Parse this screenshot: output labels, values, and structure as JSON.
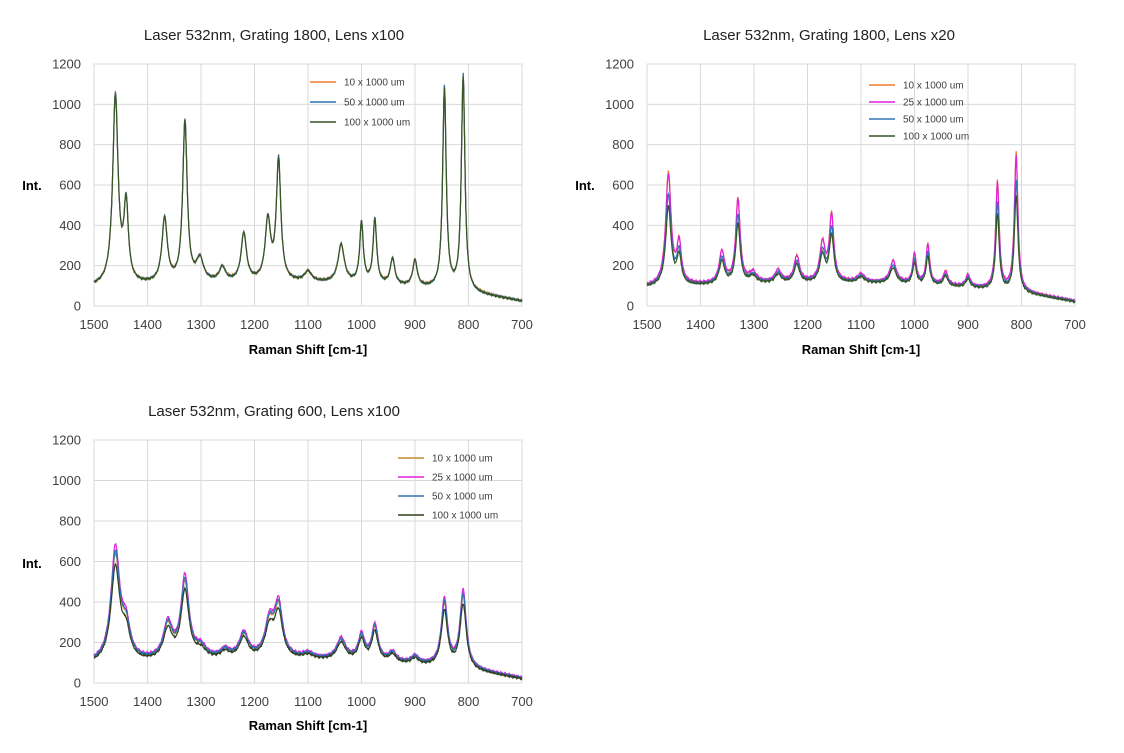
{
  "chart_data": [
    {
      "type": "line",
      "title": "Laser 532nm, Grating 1800, Lens x100",
      "xlabel": "Raman Shift [cm-1]",
      "ylabel": "Int.",
      "xlim": [
        1500,
        700
      ],
      "ylim": [
        0,
        1200
      ],
      "x_ticks": [
        1500,
        1400,
        1300,
        1200,
        1100,
        1000,
        900,
        800,
        700
      ],
      "y_ticks": [
        0,
        200,
        400,
        600,
        800,
        1000,
        1200
      ],
      "grid": true,
      "legend_position": "top-right",
      "series": [
        {
          "name": "10 x 1000 um",
          "color": "#ed7d31",
          "scale": 1.0,
          "offset": 2
        },
        {
          "name": "50 x 1000 um",
          "color": "#2e75b6",
          "scale": 1.0,
          "offset": 0
        },
        {
          "name": "100 x 1000 um",
          "color": "#375623",
          "scale": 0.99,
          "offset": -1
        }
      ],
      "peaks": [
        {
          "x": 1460,
          "height": 940,
          "width": 6
        },
        {
          "x": 1440,
          "height": 380,
          "width": 5
        },
        {
          "x": 1368,
          "height": 320,
          "width": 6
        },
        {
          "x": 1330,
          "height": 800,
          "width": 5
        },
        {
          "x": 1302,
          "height": 110,
          "width": 8
        },
        {
          "x": 1260,
          "height": 70,
          "width": 7
        },
        {
          "x": 1220,
          "height": 240,
          "width": 6
        },
        {
          "x": 1175,
          "height": 300,
          "width": 6
        },
        {
          "x": 1155,
          "height": 600,
          "width": 5
        },
        {
          "x": 1100,
          "height": 50,
          "width": 8
        },
        {
          "x": 1038,
          "height": 190,
          "width": 7
        },
        {
          "x": 1000,
          "height": 300,
          "width": 4
        },
        {
          "x": 975,
          "height": 320,
          "width": 4
        },
        {
          "x": 942,
          "height": 130,
          "width": 5
        },
        {
          "x": 900,
          "height": 130,
          "width": 5
        },
        {
          "x": 845,
          "height": 1000,
          "width": 4
        },
        {
          "x": 810,
          "height": 1070,
          "width": 4
        }
      ]
    },
    {
      "type": "line",
      "title": "Laser 532nm, Grating 1800, Lens x20",
      "xlabel": "Raman Shift [cm-1]",
      "ylabel": "Int.",
      "xlim": [
        1500,
        700
      ],
      "ylim": [
        0,
        1200
      ],
      "x_ticks": [
        1500,
        1400,
        1300,
        1200,
        1100,
        1000,
        900,
        800,
        700
      ],
      "y_ticks": [
        0,
        200,
        400,
        600,
        800,
        1000,
        1200
      ],
      "grid": true,
      "legend_position": "top-right",
      "series": [
        {
          "name": "10 x 1000 um",
          "color": "#ed7d31",
          "scale": 1.0,
          "offset": 0
        },
        {
          "name": "25 x 1000 um",
          "color": "#e020e0",
          "scale": 0.97,
          "offset": 3
        },
        {
          "name": "50 x 1000 um",
          "color": "#2e75b6",
          "scale": 0.8,
          "offset": 0
        },
        {
          "name": "100 x 1000 um",
          "color": "#375623",
          "scale": 0.7,
          "offset": -2
        }
      ],
      "peaks": [
        {
          "x": 1460,
          "height": 560,
          "width": 6
        },
        {
          "x": 1440,
          "height": 200,
          "width": 5
        },
        {
          "x": 1360,
          "height": 160,
          "width": 6
        },
        {
          "x": 1330,
          "height": 420,
          "width": 5
        },
        {
          "x": 1302,
          "height": 50,
          "width": 8
        },
        {
          "x": 1255,
          "height": 60,
          "width": 7
        },
        {
          "x": 1220,
          "height": 130,
          "width": 6
        },
        {
          "x": 1172,
          "height": 190,
          "width": 6
        },
        {
          "x": 1155,
          "height": 330,
          "width": 5
        },
        {
          "x": 1100,
          "height": 40,
          "width": 8
        },
        {
          "x": 1040,
          "height": 110,
          "width": 7
        },
        {
          "x": 1000,
          "height": 150,
          "width": 4
        },
        {
          "x": 975,
          "height": 200,
          "width": 4
        },
        {
          "x": 942,
          "height": 70,
          "width": 5
        },
        {
          "x": 900,
          "height": 60,
          "width": 5
        },
        {
          "x": 845,
          "height": 540,
          "width": 4
        },
        {
          "x": 810,
          "height": 690,
          "width": 4
        }
      ]
    },
    {
      "type": "line",
      "title": "Laser 532nm, Grating 600, Lens x100",
      "xlabel": "Raman Shift [cm-1]",
      "ylabel": "Int.",
      "xlim": [
        1500,
        700
      ],
      "ylim": [
        0,
        1200
      ],
      "x_ticks": [
        1500,
        1400,
        1300,
        1200,
        1100,
        1000,
        900,
        800,
        700
      ],
      "y_ticks": [
        0,
        200,
        400,
        600,
        800,
        1000,
        1200
      ],
      "grid": true,
      "legend_position": "top-right",
      "series": [
        {
          "name": "10 x 1000 um",
          "color": "#c08a30",
          "scale": 0.95,
          "offset": 0
        },
        {
          "name": "25 x 1000 um",
          "color": "#e020e0",
          "scale": 1.03,
          "offset": 3
        },
        {
          "name": "50 x 1000 um",
          "color": "#2e75b6",
          "scale": 0.98,
          "offset": 0
        },
        {
          "name": "100 x 1000 um",
          "color": "#2f3f1f",
          "scale": 0.86,
          "offset": -4
        }
      ],
      "peaks": [
        {
          "x": 1460,
          "height": 540,
          "width": 10
        },
        {
          "x": 1440,
          "height": 150,
          "width": 9
        },
        {
          "x": 1362,
          "height": 170,
          "width": 10
        },
        {
          "x": 1330,
          "height": 390,
          "width": 9
        },
        {
          "x": 1300,
          "height": 50,
          "width": 12
        },
        {
          "x": 1255,
          "height": 40,
          "width": 10
        },
        {
          "x": 1220,
          "height": 120,
          "width": 10
        },
        {
          "x": 1172,
          "height": 170,
          "width": 10
        },
        {
          "x": 1155,
          "height": 250,
          "width": 9
        },
        {
          "x": 1100,
          "height": 25,
          "width": 12
        },
        {
          "x": 1038,
          "height": 100,
          "width": 10
        },
        {
          "x": 1000,
          "height": 120,
          "width": 7
        },
        {
          "x": 975,
          "height": 170,
          "width": 7
        },
        {
          "x": 942,
          "height": 45,
          "width": 8
        },
        {
          "x": 900,
          "height": 35,
          "width": 8
        },
        {
          "x": 845,
          "height": 320,
          "width": 7
        },
        {
          "x": 810,
          "height": 370,
          "width": 7
        }
      ]
    }
  ]
}
